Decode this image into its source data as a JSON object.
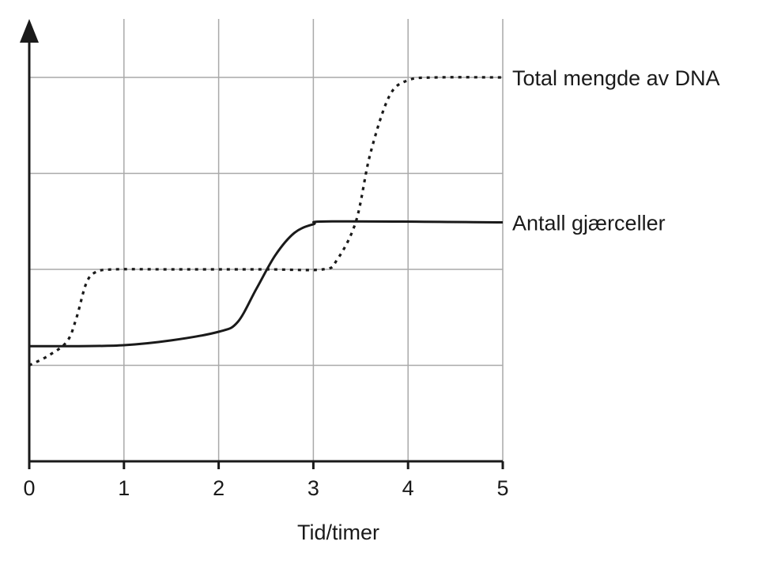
{
  "chart_data": {
    "type": "line",
    "title": "",
    "xlabel": "Tid/timer",
    "ylabel": "",
    "xlim": [
      0,
      5
    ],
    "ylim": [
      0,
      4
    ],
    "x_ticks": [
      "0",
      "1",
      "2",
      "3",
      "4",
      "5"
    ],
    "y_tick_labels_shown": false,
    "grid": true,
    "legend": "inline labels at right end of lines",
    "series": [
      {
        "name": "Total mengde av DNA",
        "line_style": "dotted",
        "color": "#1a1a1a",
        "points": [
          {
            "x": 0.0,
            "y": 1.0
          },
          {
            "x": 0.2,
            "y": 1.1
          },
          {
            "x": 0.4,
            "y": 1.25
          },
          {
            "x": 0.5,
            "y": 1.5
          },
          {
            "x": 0.6,
            "y": 1.85
          },
          {
            "x": 0.7,
            "y": 1.97
          },
          {
            "x": 0.9,
            "y": 2.0
          },
          {
            "x": 1.5,
            "y": 2.0
          },
          {
            "x": 2.5,
            "y": 2.0
          },
          {
            "x": 3.1,
            "y": 2.0
          },
          {
            "x": 3.25,
            "y": 2.1
          },
          {
            "x": 3.45,
            "y": 2.5
          },
          {
            "x": 3.6,
            "y": 3.2
          },
          {
            "x": 3.8,
            "y": 3.8
          },
          {
            "x": 4.0,
            "y": 3.97
          },
          {
            "x": 4.3,
            "y": 4.0
          },
          {
            "x": 5.0,
            "y": 4.0
          }
        ]
      },
      {
        "name": "Antall gjærceller",
        "line_style": "solid",
        "color": "#1a1a1a",
        "points": [
          {
            "x": 0.0,
            "y": 1.2
          },
          {
            "x": 0.5,
            "y": 1.2
          },
          {
            "x": 1.0,
            "y": 1.21
          },
          {
            "x": 1.5,
            "y": 1.26
          },
          {
            "x": 2.0,
            "y": 1.35
          },
          {
            "x": 2.2,
            "y": 1.45
          },
          {
            "x": 2.4,
            "y": 1.8
          },
          {
            "x": 2.6,
            "y": 2.15
          },
          {
            "x": 2.8,
            "y": 2.38
          },
          {
            "x": 3.0,
            "y": 2.47
          },
          {
            "x": 3.2,
            "y": 2.5
          },
          {
            "x": 5.0,
            "y": 2.49
          }
        ]
      }
    ]
  }
}
